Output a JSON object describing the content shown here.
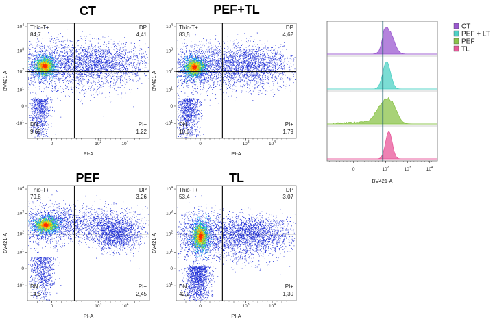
{
  "figure": {
    "scatter_x_ticks": [
      "0",
      "10",
      "3",
      "10",
      "4"
    ],
    "scatter_y_ticks": [
      {
        "base": "10",
        "exp": "4"
      },
      {
        "base": "10",
        "exp": "3"
      },
      {
        "base": "10",
        "exp": "2"
      },
      {
        "base": "10",
        "exp": "1"
      },
      {
        "base": "0",
        "exp": ""
      },
      {
        "base": "-10",
        "exp": "1"
      }
    ],
    "hist_x_ticks": [
      {
        "base": "0",
        "exp": ""
      },
      {
        "base": "10",
        "exp": "2"
      },
      {
        "base": "10",
        "exp": "3"
      },
      {
        "base": "10",
        "exp": "4"
      }
    ],
    "hist_xlabel": "BV421-A",
    "legend": [
      {
        "label": "CT",
        "color": "#9b59d0"
      },
      {
        "label": "PEF + LT",
        "color": "#4fd1c5"
      },
      {
        "label": "PEF",
        "color": "#8bc34a"
      },
      {
        "label": "TL",
        "color": "#e8579a"
      }
    ],
    "gate_line_color": "#1f5d6b"
  },
  "chart_data": [
    {
      "type": "scatter",
      "title": "CT",
      "xlabel": "PI-A",
      "ylabel": "BV421-A",
      "quadrants": {
        "top_left": {
          "name": "Thio-T+",
          "value": "84,7"
        },
        "top_right": {
          "name": "DP",
          "value": "4,41"
        },
        "bottom_left": {
          "name": "DN",
          "value": "9,69"
        },
        "bottom_right": {
          "name": "PI+",
          "value": "1,22"
        }
      }
    },
    {
      "type": "scatter",
      "title": "PEF+TL",
      "xlabel": "PI-A",
      "ylabel": "BV421-A",
      "quadrants": {
        "top_left": {
          "name": "Thio-T+",
          "value": "83,5"
        },
        "top_right": {
          "name": "DP",
          "value": "4,62"
        },
        "bottom_left": {
          "name": "DN",
          "value": "10,0"
        },
        "bottom_right": {
          "name": "PI+",
          "value": "1,79"
        }
      }
    },
    {
      "type": "scatter",
      "title": "PEF",
      "xlabel": "PI-A",
      "ylabel": "BV421-A",
      "quadrants": {
        "top_left": {
          "name": "Thio-T+",
          "value": "79,8"
        },
        "top_right": {
          "name": "DP",
          "value": "3,26"
        },
        "bottom_left": {
          "name": "DN",
          "value": "14,5"
        },
        "bottom_right": {
          "name": "PI+",
          "value": "2,45"
        }
      }
    },
    {
      "type": "scatter",
      "title": "TL",
      "xlabel": "PI-A",
      "ylabel": "BV421-A",
      "quadrants": {
        "top_left": {
          "name": "Thio-T+",
          "value": "53,4"
        },
        "top_right": {
          "name": "DP",
          "value": "3,07"
        },
        "bottom_left": {
          "name": "DN",
          "value": "42,2"
        },
        "bottom_right": {
          "name": "PI+",
          "value": "1,30"
        }
      }
    },
    {
      "type": "area",
      "xlabel": "BV421-A",
      "series": [
        {
          "name": "CT",
          "peak_x": 130
        },
        {
          "name": "PEF + LT",
          "peak_x": 120
        },
        {
          "name": "PEF",
          "peak_x": 110
        },
        {
          "name": "TL",
          "peak_x": 130
        }
      ],
      "gate_x": 70
    }
  ]
}
